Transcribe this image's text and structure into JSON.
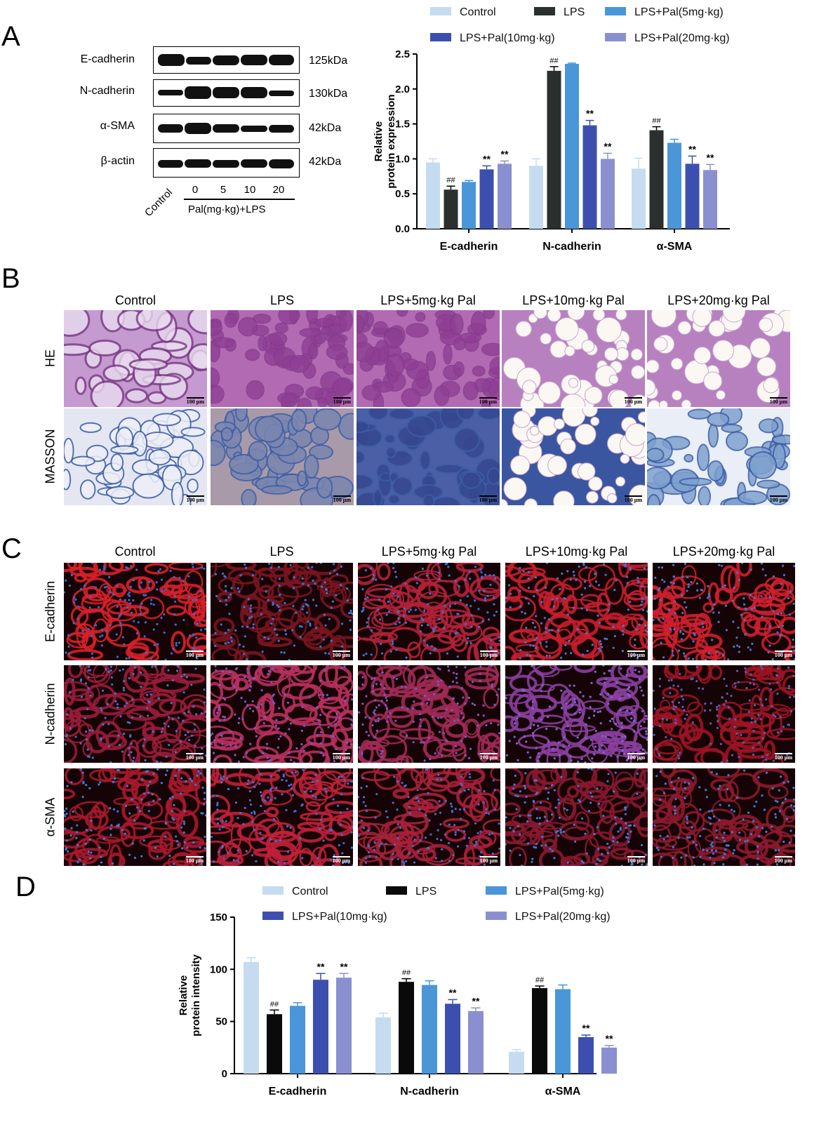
{
  "colors": {
    "control": "#c5dcf0",
    "lps_a": "#2b2f2e",
    "lps_d": "#0a0a0a",
    "pal5": "#4a96d8",
    "pal10": "#3d4fae",
    "pal20": "#8a90cf"
  },
  "panelA": {
    "letter": "A",
    "blot_labels": [
      "E-cadherin",
      "N-cadherin",
      "α-SMA",
      "β-actin"
    ],
    "kda_labels": [
      "125kDa",
      "130kDa",
      "42kDa",
      "42kDa"
    ],
    "lane_control": "Control",
    "lane_numbers": [
      "0",
      "5",
      "10",
      "20"
    ],
    "lane_caption": "Pal(mg·kg)+LPS"
  },
  "panelB": {
    "letter": "B",
    "columns": [
      "Control",
      "LPS",
      "LPS+5mg·kg Pal",
      "LPS+10mg·kg Pal",
      "LPS+20mg·kg Pal"
    ],
    "rows": [
      "HE",
      "MASSON"
    ],
    "scale_bar": "100 μm"
  },
  "panelC": {
    "letter": "C",
    "columns": [
      "Control",
      "LPS",
      "LPS+5mg·kg Pal",
      "LPS+10mg·kg Pal",
      "LPS+20mg·kg Pal"
    ],
    "rows": [
      "E-cadherin",
      "N-cadherin",
      "α-SMA"
    ],
    "scale_bar": "100 μm"
  },
  "panelD": {
    "letter": "D"
  },
  "chart_data": [
    {
      "type": "bar",
      "panel": "A",
      "categories": [
        "E-cadherin",
        "N-cadherin",
        "α-SMA"
      ],
      "ylabel": [
        "Relative",
        "protein expression"
      ],
      "ylim": [
        0,
        2.5
      ],
      "yticks": [
        "0.0",
        "0.5",
        "1.0",
        "1.5",
        "2.0",
        "2.5"
      ],
      "legend_position": "top",
      "series": [
        {
          "name": "Control",
          "values": [
            0.95,
            0.9,
            0.86
          ],
          "errors": [
            0.05,
            0.1,
            0.15
          ],
          "marks": [
            "",
            "",
            ""
          ]
        },
        {
          "name": "LPS",
          "values": [
            0.56,
            2.26,
            1.41
          ],
          "errors": [
            0.05,
            0.06,
            0.05
          ],
          "marks": [
            "##",
            "##",
            "##"
          ]
        },
        {
          "name": "LPS+Pal(5mg·kg)",
          "values": [
            0.67,
            2.36,
            1.23
          ],
          "errors": [
            0.02,
            0.01,
            0.05
          ],
          "marks": [
            "",
            "",
            ""
          ]
        },
        {
          "name": "LPS+Pal(10mg·kg)",
          "values": [
            0.85,
            1.48,
            0.93
          ],
          "errors": [
            0.05,
            0.07,
            0.11
          ],
          "marks": [
            "**",
            "**",
            "**"
          ]
        },
        {
          "name": "LPS+Pal(20mg·kg)",
          "values": [
            0.93,
            1.0,
            0.84
          ],
          "errors": [
            0.04,
            0.08,
            0.08
          ],
          "marks": [
            "**",
            "**",
            "**"
          ]
        }
      ]
    },
    {
      "type": "bar",
      "panel": "D",
      "categories": [
        "E-cadherin",
        "N-cadherin",
        "α-SMA"
      ],
      "ylabel": [
        "Relative",
        "protein intensity"
      ],
      "ylim": [
        0,
        150
      ],
      "yticks": [
        "0",
        "50",
        "100",
        "150"
      ],
      "legend_position": "top",
      "series": [
        {
          "name": "Control",
          "values": [
            107,
            54,
            21
          ],
          "errors": [
            4,
            4,
            2
          ],
          "marks": [
            "",
            "",
            ""
          ]
        },
        {
          "name": "LPS",
          "values": [
            57,
            88,
            82
          ],
          "errors": [
            4,
            3,
            2
          ],
          "marks": [
            "##",
            "##",
            "##"
          ]
        },
        {
          "name": "LPS+Pal(5mg·kg)",
          "values": [
            65,
            85,
            81
          ],
          "errors": [
            3,
            4,
            4
          ],
          "marks": [
            "",
            "",
            ""
          ]
        },
        {
          "name": "LPS+Pal(10mg·kg)",
          "values": [
            90,
            67,
            35
          ],
          "errors": [
            6,
            4,
            2
          ],
          "marks": [
            "**",
            "**",
            "**"
          ]
        },
        {
          "name": "LPS+Pal(20mg·kg)",
          "values": [
            92,
            60,
            25
          ],
          "errors": [
            4,
            3,
            2
          ],
          "marks": [
            "**",
            "**",
            "**"
          ]
        }
      ]
    }
  ]
}
